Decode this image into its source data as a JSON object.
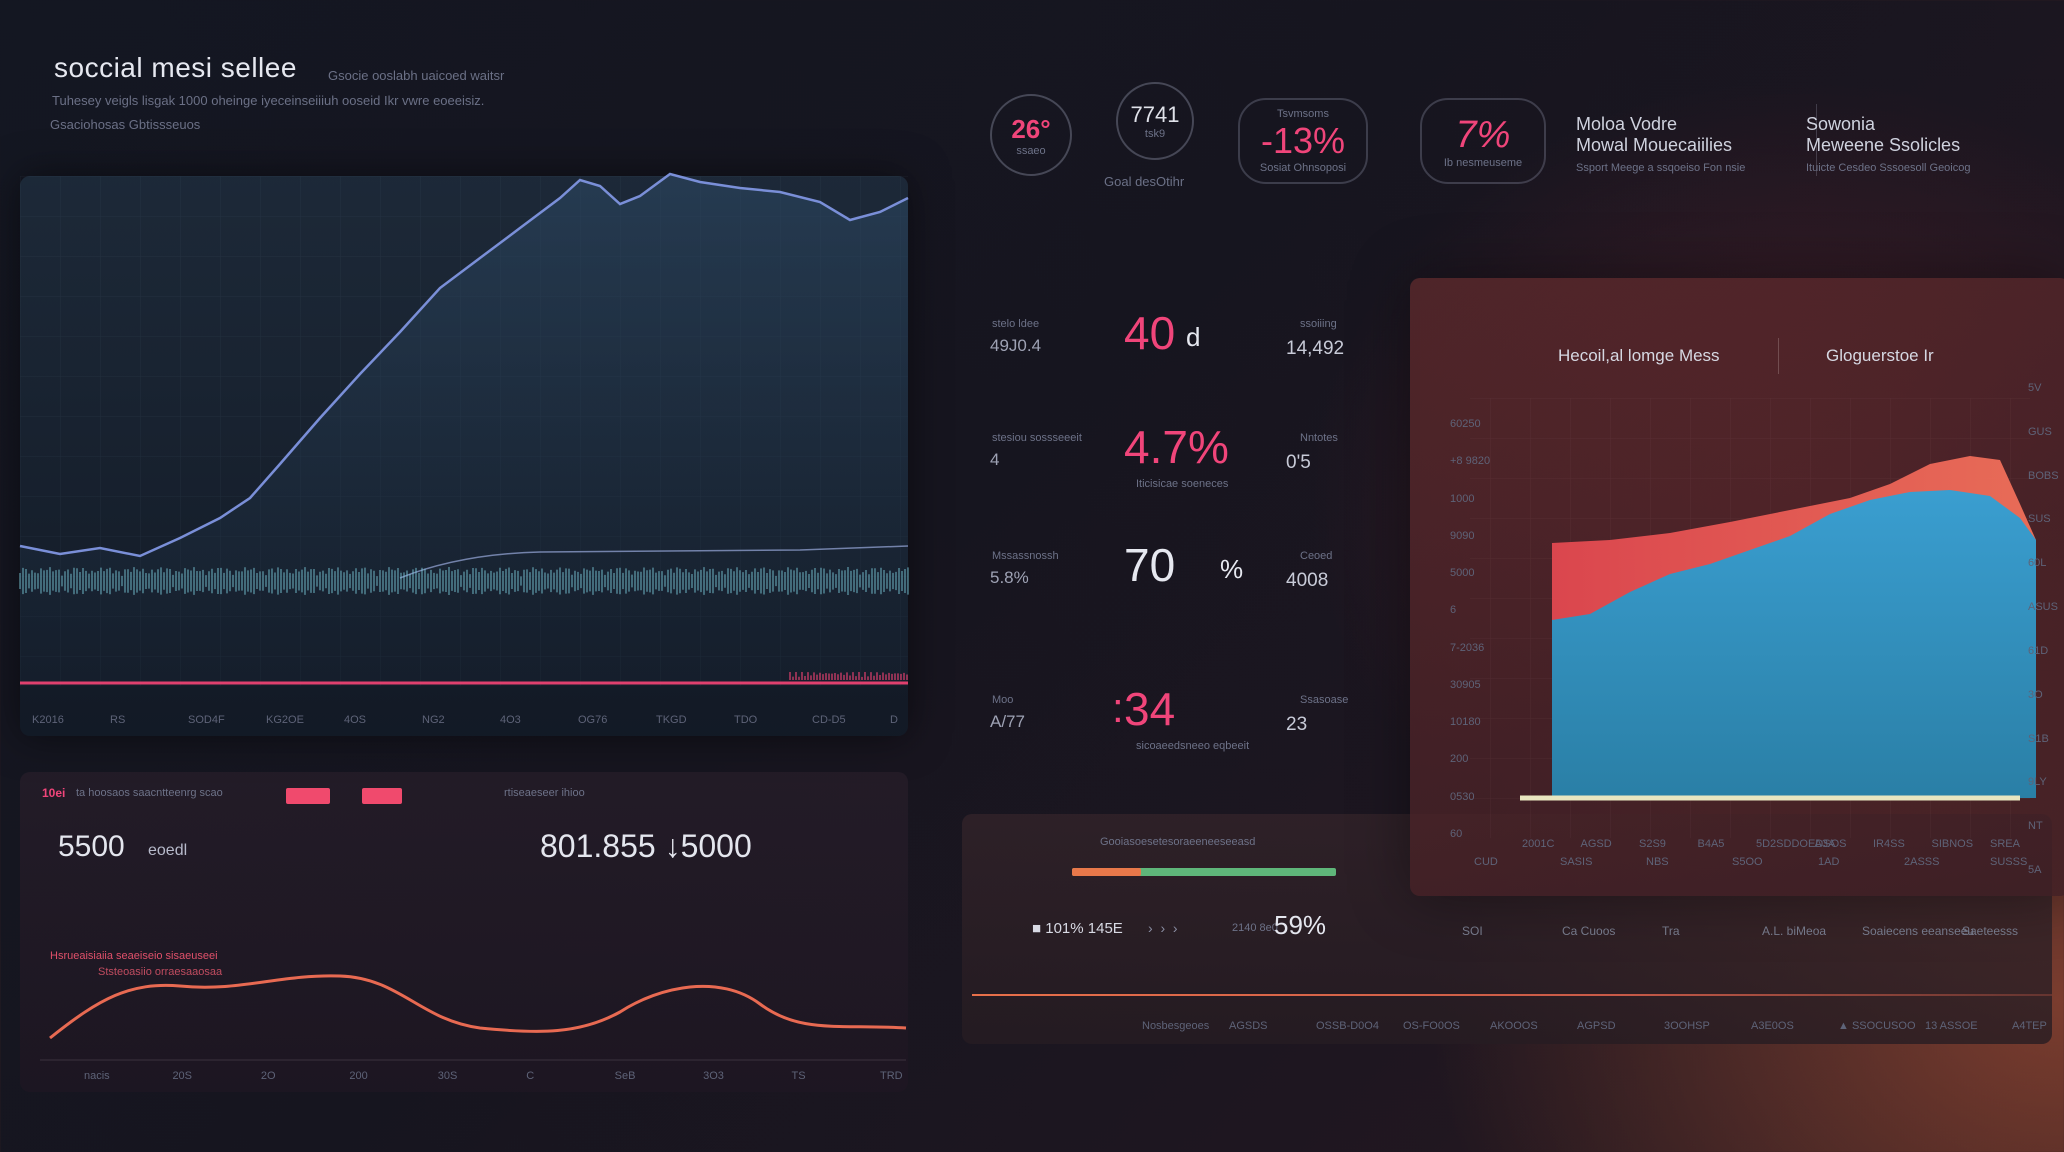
{
  "header": {
    "title": "soccial mesi sellee",
    "title_aside": "Gsocie ooslabh uaicoed waitsr",
    "subtitle": "Tuhesey veigls lisgak 1000 oheinge iyeceinseiiiuh ooseid Ikr vwre eoeeisiz.",
    "subtitle2": "Gsaciohosas Gbtissseuos"
  },
  "kpis": [
    {
      "value": "26°",
      "caption": "ssaeo"
    },
    {
      "value": "7741",
      "sub": "tsk9",
      "caption": "Goal desOtihr"
    },
    {
      "value": "-13%",
      "top": "Tsvmsoms",
      "caption": "Sosiat Ohnsoposi"
    },
    {
      "value": "7%",
      "caption": "Ib nesmeuseme"
    },
    {
      "line1": "Moloa Vodre",
      "line2": "Mowal Mouecaiilies",
      "caption": "Ssport Meege a ssqoeiso Fon nsie"
    },
    {
      "line1": "Sowonia",
      "line2": "Meweene Ssolicles",
      "caption": "Ituicte Cesdeo Sssoesoll Geoicog"
    }
  ],
  "stats": [
    {
      "left_label": "stelo ldee",
      "left_value": "49J0.4",
      "mid": "40",
      "mid_suffix": "d",
      "right_label": "ssoiiing",
      "right_value": "14,492"
    },
    {
      "left_label": "stesiou sossseeeit",
      "left_value": "4",
      "mid": "4.7%",
      "mid_note": "Iticisicae soeneces",
      "right_label": "Nntotes",
      "right_value": "0'5"
    },
    {
      "left_label": "Mssassnossh",
      "left_value": "5.8%",
      "mid": "70",
      "mid_suffix": "%",
      "right_label": "Ceoed",
      "right_value": "4008"
    },
    {
      "left_label": "Moo",
      "left_value": "A/77",
      "mid": "34",
      "mid_prefix": ":",
      "mid_note": "sicoaeedsneeo eqbeeit",
      "right_label": "Ssasoase",
      "right_value": "23"
    }
  ],
  "main_chart": {
    "x_ticks": [
      "K2016",
      "RS",
      "SOD4F",
      "KG2OE",
      "4OS",
      "NG2",
      "4O3",
      "OG76",
      "TKGD",
      "TDO",
      "CD-D5",
      "D"
    ]
  },
  "bottom_left": {
    "legend_label": "10ei",
    "legend_text": "ta hoosaos saacntteenrg scao",
    "legend2": "rtiseaeseer ihioo",
    "big_value": "5500",
    "big_caption": "eoedl",
    "center_value": "801.855 ↓5000",
    "note1": "Hsrueaisiaiia seaeiseio sisaeuseei",
    "note2": "Ststeoasiio orraesaaosaa",
    "x_ticks": [
      "nacis",
      "20S",
      "2O",
      "200",
      "30S",
      "C",
      "SeB",
      "3O3",
      "TS",
      "TRD"
    ]
  },
  "bottom_mid": {
    "title": "Gooiasoesetesoraeeneeseeasd",
    "left_value": "■ 101% 145E",
    "right_caption": "2140 8e0",
    "right_value": "59%",
    "x_ticks": [
      "Nosbesgeoes",
      "AGSDS",
      "OSSB-D0O4",
      "OS-FO0OS",
      "AKOOOS",
      "AGPSD",
      "3OOHSP",
      "A3E0OS",
      "▲ SSOCUSOO",
      "13 ASSOE",
      "A4TEP"
    ],
    "legend": [
      "SOI",
      "Ca Cuoos",
      "Tra",
      "A.L. biMeoa",
      "Soaiecens eeanseeu",
      "Saeteesss"
    ]
  },
  "right_chart": {
    "title": "Hecoil,al lomge Mess",
    "title2": "Gloguerstoe Ir",
    "y_ticks": [
      "60250",
      "+8 9820",
      "1000",
      "9090",
      "5000",
      "6",
      "7-2036",
      "30905",
      "10180",
      "200",
      "0530",
      "60"
    ],
    "y_ticks_right": [
      "5V",
      "GUS",
      "BOBS",
      "SUS",
      "60L",
      "ASUS",
      "61D",
      "3O",
      "S1B",
      "9LY",
      "NT",
      "5A"
    ],
    "x_ticks": [
      "2001C",
      "AGSD",
      "S2S9",
      "B4A5",
      "5D2SDDOEDSOS",
      "A3A",
      "IR4SS",
      "SIBNOS",
      "SREA"
    ],
    "x_ticks2": [
      "CUD",
      "SASIS",
      "NBS",
      "S5OO",
      "1AD",
      "2ASSS",
      "SUSSS"
    ],
    "colors": {
      "red": "#e9504e",
      "blue": "#3c9bc4"
    }
  }
}
